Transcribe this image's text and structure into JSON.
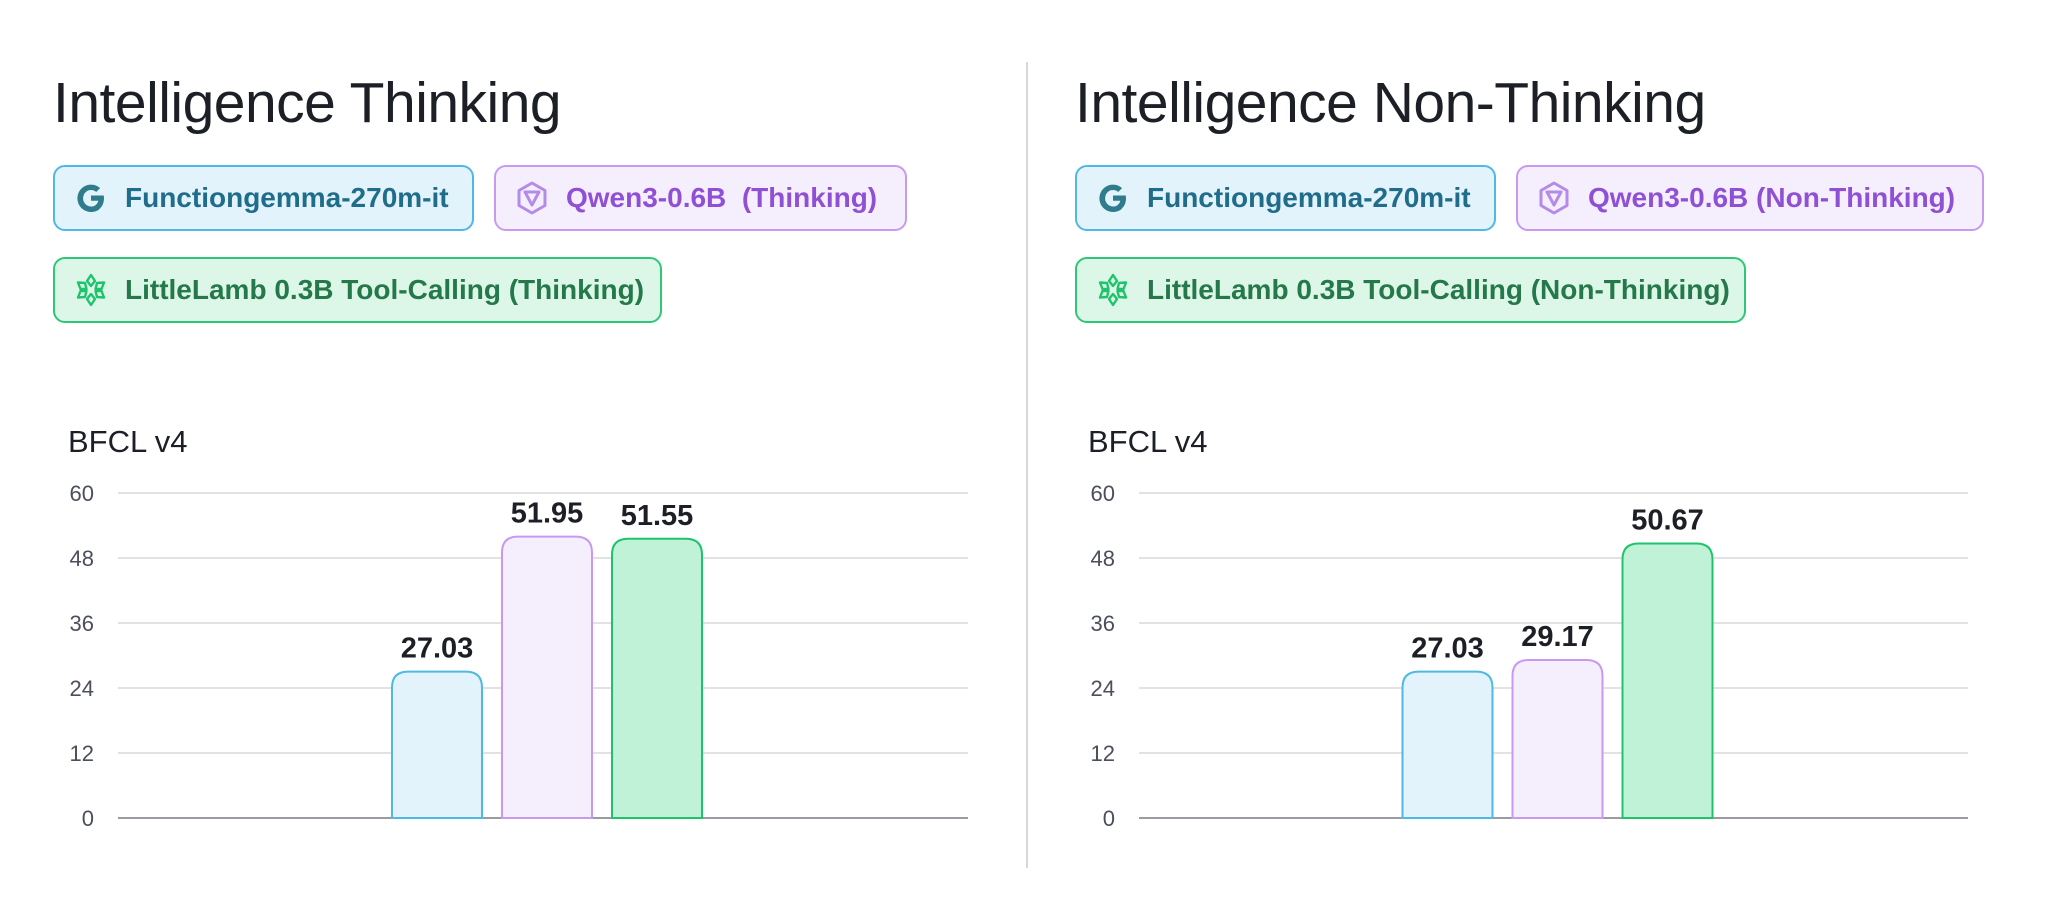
{
  "chart_data": [
    {
      "type": "bar",
      "title": "Intelligence Thinking",
      "subtitle": "BFCL v4",
      "categories": [
        "Functiongemma-270m-it",
        "Qwen3-0.6B  (Thinking)",
        "LittleLamb 0.3B Tool-Calling (Thinking)"
      ],
      "values": [
        27.03,
        51.95,
        51.55
      ],
      "value_labels": [
        "27.03",
        "51.95",
        "51.55"
      ],
      "ylim": [
        0,
        60
      ],
      "yticks": [
        "60",
        "48",
        "36",
        "24",
        "12",
        "0"
      ],
      "ytick_values": [
        60,
        48,
        36,
        24,
        12,
        0
      ],
      "grid": true,
      "legend": [
        {
          "label": "Functiongemma-270m-it",
          "icon": "google-g-icon",
          "color": "#4fb9e2"
        },
        {
          "label": "Qwen3-0.6B  (Thinking)",
          "icon": "qwen-logo-icon",
          "color": "#c79af0"
        },
        {
          "label": "LittleLamb 0.3B Tool-Calling (Thinking)",
          "icon": "snowflake-flower-icon",
          "color": "#2ec777"
        }
      ],
      "colors": {
        "fills": [
          "#e3f3fb",
          "#f5effd",
          "#bff2d6"
        ],
        "strokes": [
          "#4fb9e2",
          "#c79af0",
          "#1fc36c"
        ]
      }
    },
    {
      "type": "bar",
      "title": "Intelligence Non-Thinking",
      "subtitle": "BFCL v4",
      "categories": [
        "Functiongemma-270m-it",
        "Qwen3-0.6B (Non-Thinking)",
        "LittleLamb 0.3B Tool-Calling (Non-Thinking)"
      ],
      "values": [
        27.03,
        29.17,
        50.67
      ],
      "value_labels": [
        "27.03",
        "29.17",
        "50.67"
      ],
      "ylim": [
        0,
        60
      ],
      "yticks": [
        "60",
        "48",
        "36",
        "24",
        "12",
        "0"
      ],
      "ytick_values": [
        60,
        48,
        36,
        24,
        12,
        0
      ],
      "grid": true,
      "legend": [
        {
          "label": "Functiongemma-270m-it",
          "icon": "google-g-icon",
          "color": "#4fb9e2"
        },
        {
          "label": "Qwen3-0.6B (Non-Thinking)",
          "icon": "qwen-logo-icon",
          "color": "#c79af0"
        },
        {
          "label": "LittleLamb 0.3B Tool-Calling (Non-Thinking)",
          "icon": "snowflake-flower-icon",
          "color": "#2ec777"
        }
      ],
      "colors": {
        "fills": [
          "#e3f3fb",
          "#f5effd",
          "#bff2d6"
        ],
        "strokes": [
          "#4fb9e2",
          "#c79af0",
          "#1fc36c"
        ]
      }
    }
  ]
}
